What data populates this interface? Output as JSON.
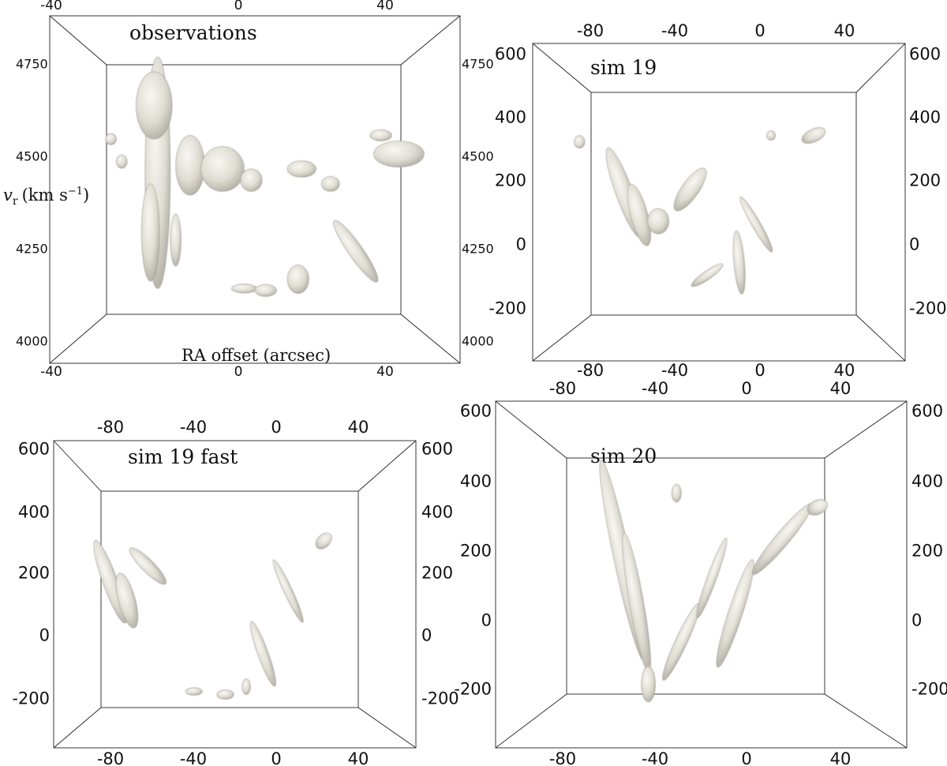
{
  "chart_data": [
    {
      "type": "3d-isosurface",
      "panel": "observations",
      "title": "observations",
      "xlabel": "RA offset (arcsec)",
      "ylabel": "v",
      "ylabel_sub": "r",
      "ylabel_unit": "(km s",
      "ylabel_unit_sup": "−1",
      "ylabel_close": ")",
      "x_ticks": [
        "-40",
        "0",
        "40"
      ],
      "y_ticks": [
        "4000",
        "4250",
        "4500",
        "4750"
      ],
      "ylim": [
        3950,
        4880
      ],
      "xlim": [
        -62,
        52
      ],
      "blobs": [
        {
          "x": -32,
          "y": 4460,
          "rx": 3.5,
          "ry": 310,
          "rot": 0
        },
        {
          "x": -33,
          "y": 4640,
          "rx": 5,
          "ry": 90,
          "rot": 0
        },
        {
          "x": -34,
          "y": 4300,
          "rx": 2.5,
          "ry": 130,
          "rot": 0
        },
        {
          "x": -23,
          "y": 4480,
          "rx": 4,
          "ry": 80,
          "rot": 0
        },
        {
          "x": -27,
          "y": 4280,
          "rx": 1.5,
          "ry": 70,
          "rot": 0
        },
        {
          "x": -14,
          "y": 4470,
          "rx": 6,
          "ry": 60,
          "rot": 0
        },
        {
          "x": -6,
          "y": 4440,
          "rx": 3,
          "ry": 30,
          "rot": 0
        },
        {
          "x": 8,
          "y": 4470,
          "rx": 4,
          "ry": 22,
          "rot": 0
        },
        {
          "x": 16,
          "y": 4430,
          "rx": 2.5,
          "ry": 20,
          "rot": 0
        },
        {
          "x": 23,
          "y": 4250,
          "rx": 2,
          "ry": 100,
          "rot": -35
        },
        {
          "x": 7,
          "y": 4175,
          "rx": 3,
          "ry": 38,
          "rot": 0
        },
        {
          "x": -8,
          "y": 4150,
          "rx": 3.5,
          "ry": 12,
          "rot": 0
        },
        {
          "x": -2,
          "y": 4145,
          "rx": 3,
          "ry": 16,
          "rot": 0
        },
        {
          "x": 35,
          "y": 4510,
          "rx": 7,
          "ry": 35,
          "rot": 0
        },
        {
          "x": 30,
          "y": 4560,
          "rx": 3,
          "ry": 15,
          "rot": 0
        },
        {
          "x": -45,
          "y": 4550,
          "rx": 1.5,
          "ry": 15,
          "rot": 0
        },
        {
          "x": -42,
          "y": 4490,
          "rx": 1.5,
          "ry": 18,
          "rot": 0
        }
      ]
    },
    {
      "type": "3d-isosurface",
      "panel": "sim 19",
      "title": "sim 19",
      "x_ticks": [
        "-80",
        "-40",
        "0",
        "40"
      ],
      "y_ticks": [
        "-200",
        "0",
        "200",
        "400",
        "600"
      ],
      "ylim": [
        -370,
        630
      ],
      "xlim": [
        -107,
        68
      ],
      "blobs": [
        {
          "x": -64,
          "y": 160,
          "rx": 4,
          "ry": 150,
          "rot": -20
        },
        {
          "x": -57,
          "y": 90,
          "rx": 4,
          "ry": 100,
          "rot": -15
        },
        {
          "x": -48,
          "y": 70,
          "rx": 5,
          "ry": 40,
          "rot": 0
        },
        {
          "x": -33,
          "y": 170,
          "rx": 4,
          "ry": 80,
          "rot": 35
        },
        {
          "x": -10,
          "y": -60,
          "rx": 2.5,
          "ry": 100,
          "rot": -5
        },
        {
          "x": -2,
          "y": 60,
          "rx": 2,
          "ry": 100,
          "rot": -30
        },
        {
          "x": -25,
          "y": -100,
          "rx": 2,
          "ry": 60,
          "rot": 55
        },
        {
          "x": 25,
          "y": 340,
          "rx": 3,
          "ry": 40,
          "rot": 65
        },
        {
          "x": 5,
          "y": 340,
          "rx": 2,
          "ry": 15,
          "rot": 0
        },
        {
          "x": -85,
          "y": 320,
          "rx": 2.5,
          "ry": 20,
          "rot": 0
        }
      ]
    },
    {
      "type": "3d-isosurface",
      "panel": "sim 19 fast",
      "title": "sim 19 fast",
      "x_ticks": [
        "-80",
        "-40",
        "0",
        "40"
      ],
      "y_ticks": [
        "-200",
        "0",
        "200",
        "400",
        "600"
      ],
      "ylim": [
        -350,
        630
      ],
      "xlim": [
        -107,
        66
      ],
      "blobs": [
        {
          "x": -80,
          "y": 180,
          "rx": 3.5,
          "ry": 140,
          "rot": -20
        },
        {
          "x": -72,
          "y": 120,
          "rx": 4,
          "ry": 90,
          "rot": -15
        },
        {
          "x": -62,
          "y": 230,
          "rx": 3,
          "ry": 80,
          "rot": -45
        },
        {
          "x": -40,
          "y": -170,
          "rx": 4,
          "ry": 12,
          "rot": 0
        },
        {
          "x": -25,
          "y": -180,
          "rx": 4,
          "ry": 15,
          "rot": 0
        },
        {
          "x": -15,
          "y": -155,
          "rx": 2,
          "ry": 25,
          "rot": 0
        },
        {
          "x": -7,
          "y": -50,
          "rx": 2.5,
          "ry": 110,
          "rot": -20
        },
        {
          "x": 5,
          "y": 150,
          "rx": 2,
          "ry": 110,
          "rot": -25
        },
        {
          "x": 22,
          "y": 310,
          "rx": 3,
          "ry": 30,
          "rot": 45
        }
      ]
    },
    {
      "type": "3d-isosurface",
      "panel": "sim 20",
      "title": "sim 20",
      "x_ticks": [
        "-80",
        "-40",
        "0",
        "40"
      ],
      "y_ticks": [
        "-200",
        "0",
        "200",
        "400",
        "600"
      ],
      "ylim": [
        -360,
        620
      ],
      "xlim": [
        -107,
        68
      ],
      "blobs": [
        {
          "x": -53,
          "y": 170,
          "rx": 3.5,
          "ry": 290,
          "rot": -12
        },
        {
          "x": -47,
          "y": 50,
          "rx": 3,
          "ry": 200,
          "rot": -10
        },
        {
          "x": -42,
          "y": -180,
          "rx": 3,
          "ry": 50,
          "rot": 0
        },
        {
          "x": -28,
          "y": -60,
          "rx": 2.5,
          "ry": 120,
          "rot": 25
        },
        {
          "x": -15,
          "y": 120,
          "rx": 2,
          "ry": 120,
          "rot": 20
        },
        {
          "x": -5,
          "y": 20,
          "rx": 3,
          "ry": 160,
          "rot": 18
        },
        {
          "x": 15,
          "y": 230,
          "rx": 3,
          "ry": 130,
          "rot": 40
        },
        {
          "x": 30,
          "y": 320,
          "rx": 3,
          "ry": 30,
          "rot": 65
        },
        {
          "x": -30,
          "y": 360,
          "rx": 2,
          "ry": 25,
          "rot": 0
        }
      ]
    }
  ]
}
